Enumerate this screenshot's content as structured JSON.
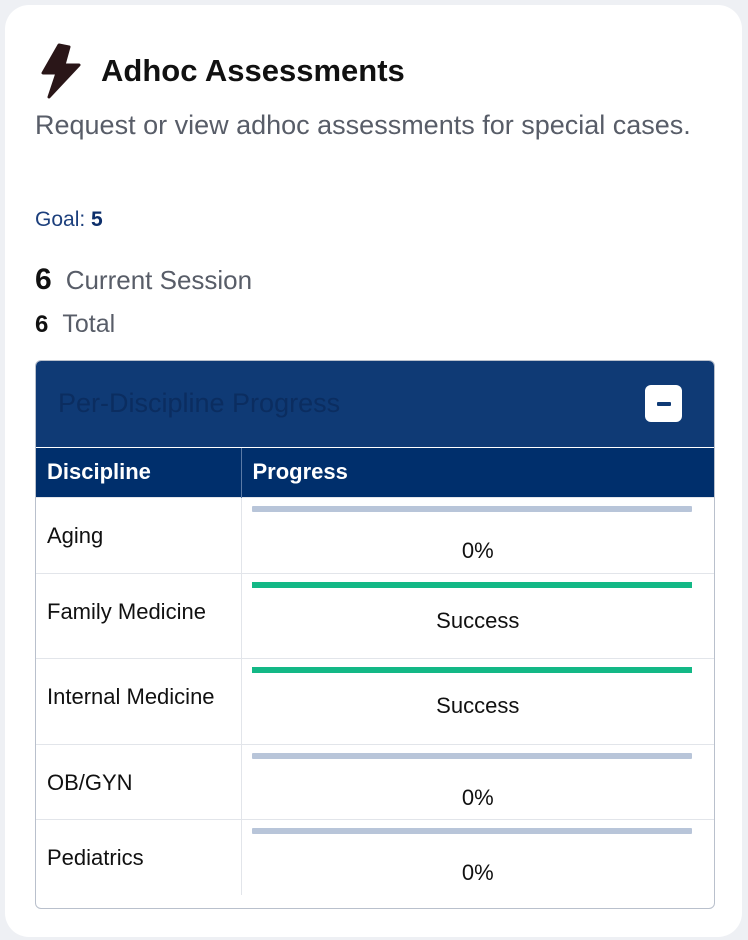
{
  "card": {
    "icon": "lightning-bolt-icon",
    "title": "Adhoc Assessments",
    "description": "Request or view adhoc assessments for special cases.",
    "goal_label": "Goal:",
    "goal_value": "5",
    "current_session_value": "6",
    "current_session_label": "Current Session",
    "total_value": "6",
    "total_label": "Total"
  },
  "panel": {
    "title": "Per-Discipline Progress",
    "collapse_icon": "minus-icon",
    "columns": [
      "Discipline",
      "Progress"
    ],
    "rows": [
      {
        "discipline": "Aging",
        "progress": 0,
        "label": "0%"
      },
      {
        "discipline": "Family Medicine",
        "progress": 100,
        "label": "Success"
      },
      {
        "discipline": "Internal Medicine",
        "progress": 100,
        "label": "Success"
      },
      {
        "discipline": "OB/GYN",
        "progress": 0,
        "label": "0%"
      },
      {
        "discipline": "Pediatrics",
        "progress": 0,
        "label": "0%"
      }
    ]
  },
  "colors": {
    "primary": "#0f3a75",
    "header": "#002f6c",
    "success": "#13b886",
    "track": "#b8c5d9"
  }
}
